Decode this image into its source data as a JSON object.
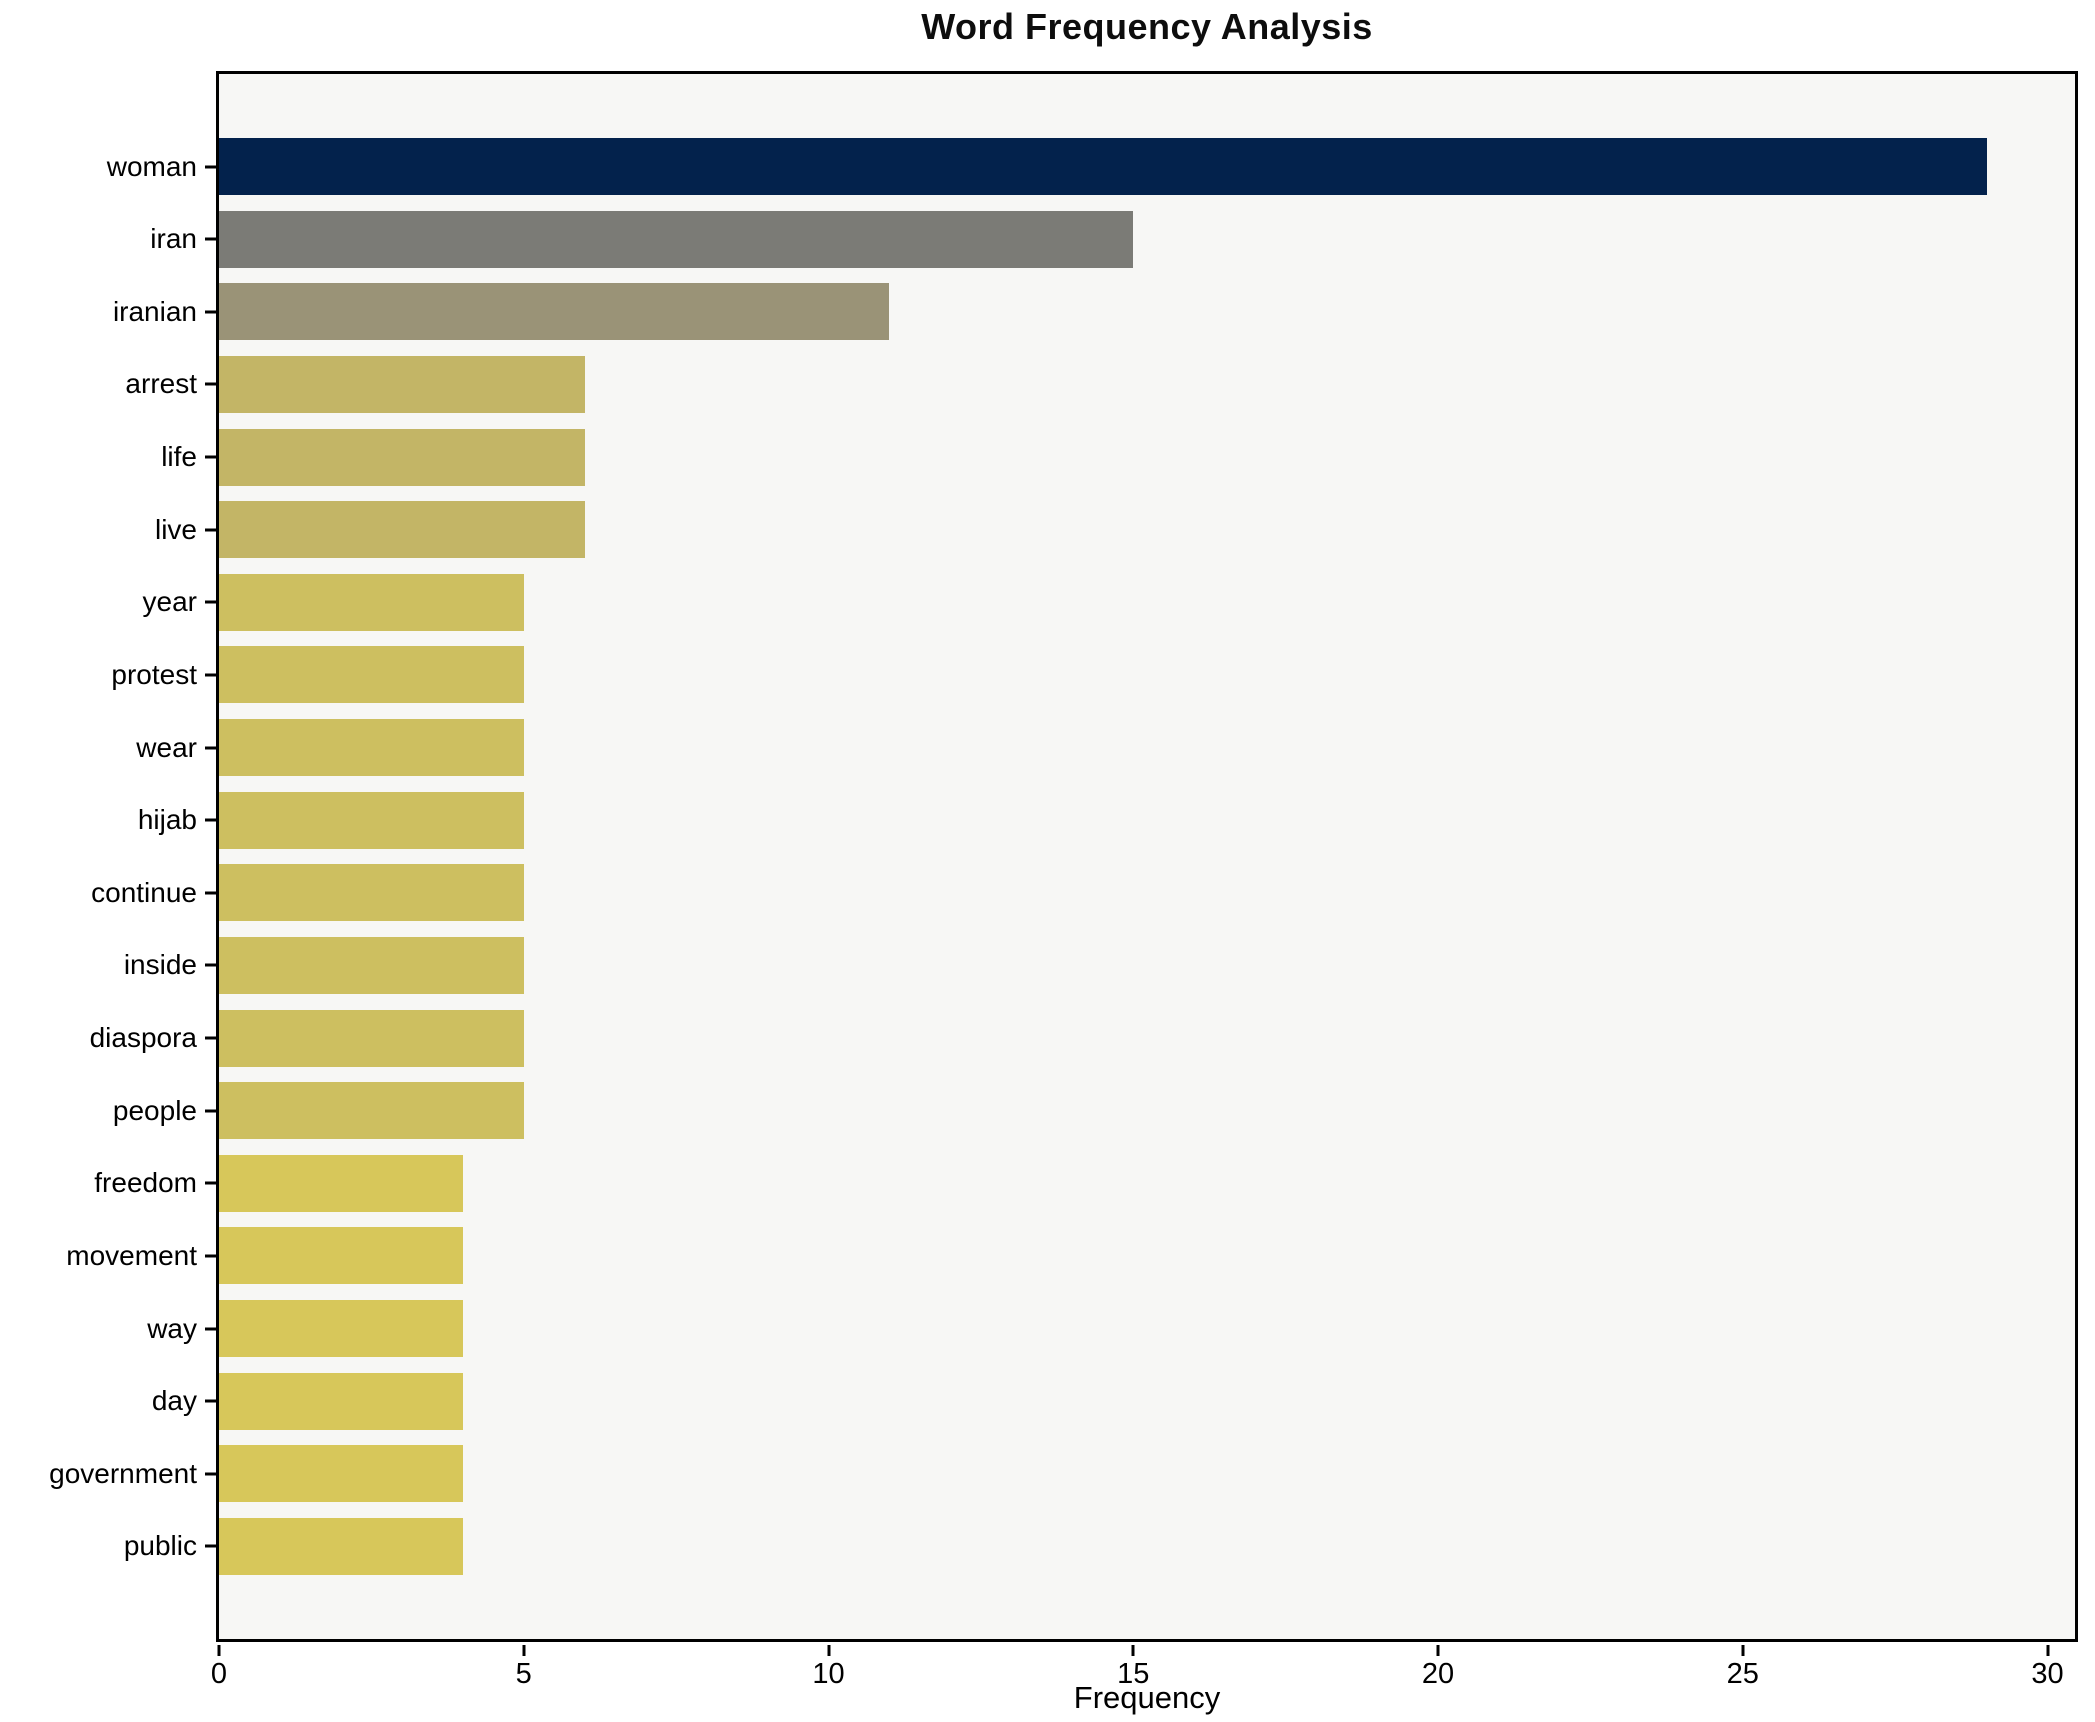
{
  "figure": {
    "title": "Word Frequency Analysis",
    "xlabel": "Frequency"
  },
  "chart_data": {
    "type": "bar",
    "orientation": "horizontal",
    "title": "Word Frequency Analysis",
    "xlabel": "Frequency",
    "ylabel": "",
    "categories": [
      "woman",
      "iran",
      "iranian",
      "arrest",
      "life",
      "live",
      "year",
      "protest",
      "wear",
      "hijab",
      "continue",
      "inside",
      "diaspora",
      "people",
      "freedom",
      "movement",
      "way",
      "day",
      "government",
      "public"
    ],
    "values": [
      29,
      15,
      11,
      6,
      6,
      6,
      5,
      5,
      5,
      5,
      5,
      5,
      5,
      5,
      4,
      4,
      4,
      4,
      4,
      4
    ],
    "bar_colors": [
      "#03224c",
      "#7b7b76",
      "#9a9377",
      "#c3b566",
      "#c3b566",
      "#c3b566",
      "#cdbf60",
      "#cdbf60",
      "#cdbf60",
      "#cdbf60",
      "#cdbf60",
      "#cdbf60",
      "#cdbf60",
      "#cdbf60",
      "#d7c75a",
      "#d7c75a",
      "#d7c75a",
      "#d7c75a",
      "#d7c75a",
      "#d7c75a"
    ],
    "xlim": [
      0,
      30.45
    ],
    "xticks": [
      0,
      5,
      10,
      15,
      20,
      25,
      30
    ],
    "grid": false,
    "legend_position": "none",
    "style_colors": {
      "axes_background": "#f7f7f5",
      "figure_background": "#ffffff",
      "spine": "#000000",
      "text": "#000000"
    }
  }
}
